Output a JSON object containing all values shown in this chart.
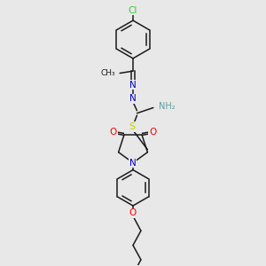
{
  "background_color": "#e8e8e8",
  "bond_color": "#1a1a1a",
  "figsize": [
    3.0,
    3.0
  ],
  "dpi": 100,
  "colors": {
    "Cl": "#32cd32",
    "N": "#0000cc",
    "O": "#ff0000",
    "S": "#cccc00",
    "NH2": "#5f9ea0",
    "C": "#1a1a1a"
  }
}
